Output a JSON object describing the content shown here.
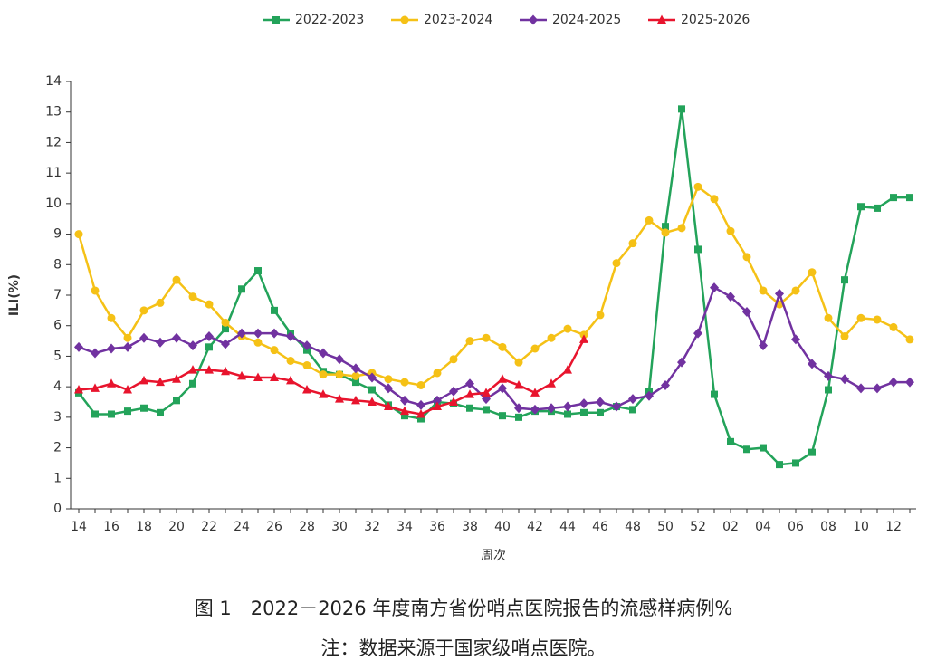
{
  "chart_data": {
    "type": "line",
    "x_label": "周次",
    "y_label": "ILI(%)",
    "categories": [
      "14",
      null,
      "16",
      null,
      "18",
      null,
      "20",
      null,
      "22",
      null,
      "24",
      null,
      "26",
      null,
      "28",
      null,
      "30",
      null,
      "32",
      null,
      "34",
      null,
      "36",
      null,
      "38",
      null,
      "40",
      null,
      "42",
      null,
      "44",
      null,
      "46",
      null,
      "48",
      null,
      "50",
      null,
      "52",
      null,
      "02",
      null,
      "04",
      null,
      "06",
      null,
      "08",
      null,
      "10",
      null,
      "12",
      null
    ],
    "ylim": [
      0,
      14
    ],
    "yticks": [
      0,
      1,
      2,
      3,
      4,
      5,
      6,
      7,
      8,
      9,
      10,
      11,
      12,
      13,
      14
    ],
    "series": [
      {
        "name": "2022-2023",
        "color": "#23a35a",
        "marker": "square",
        "values": [
          3.8,
          3.1,
          3.1,
          3.2,
          3.3,
          3.15,
          3.55,
          4.1,
          5.3,
          5.9,
          7.2,
          7.8,
          6.5,
          5.75,
          5.2,
          4.5,
          4.4,
          4.15,
          3.9,
          3.4,
          3.05,
          2.95,
          3.5,
          3.45,
          3.3,
          3.25,
          3.05,
          3.0,
          3.2,
          3.2,
          3.1,
          3.15,
          3.15,
          3.35,
          3.25,
          3.85,
          9.25,
          13.1,
          8.5,
          3.75,
          2.2,
          1.95,
          2.0,
          1.45,
          1.5,
          1.85,
          3.9,
          7.5,
          9.9,
          9.85,
          10.2,
          10.2
        ]
      },
      {
        "name": "2023-2024",
        "color": "#f5c116",
        "marker": "circle",
        "values": [
          9.0,
          7.15,
          6.25,
          5.6,
          6.5,
          6.75,
          7.5,
          6.95,
          6.7,
          6.1,
          5.65,
          5.45,
          5.2,
          4.85,
          4.7,
          4.4,
          4.4,
          4.35,
          4.45,
          4.25,
          4.15,
          4.05,
          4.45,
          4.9,
          5.5,
          5.6,
          5.3,
          4.8,
          5.25,
          5.6,
          5.9,
          5.7,
          6.35,
          8.05,
          8.7,
          9.45,
          9.05,
          9.2,
          10.55,
          10.15,
          9.1,
          8.25,
          7.15,
          6.7,
          7.15,
          7.75,
          6.25,
          5.65,
          6.25,
          6.2,
          5.95,
          5.55
        ]
      },
      {
        "name": "2024-2025",
        "color": "#7132a0",
        "marker": "diamond",
        "values": [
          5.3,
          5.1,
          5.25,
          5.3,
          5.6,
          5.45,
          5.6,
          5.35,
          5.65,
          5.4,
          5.75,
          5.75,
          5.75,
          5.65,
          5.35,
          5.1,
          4.9,
          4.6,
          4.3,
          3.95,
          3.55,
          3.4,
          3.55,
          3.85,
          4.1,
          3.6,
          3.95,
          3.3,
          3.25,
          3.3,
          3.35,
          3.45,
          3.5,
          3.35,
          3.6,
          3.7,
          4.05,
          4.8,
          5.75,
          7.25,
          6.95,
          6.45,
          5.35,
          7.05,
          5.55,
          4.75,
          4.35,
          4.25,
          3.95,
          3.95,
          4.15,
          4.15
        ]
      },
      {
        "name": "2025-2026",
        "color": "#e8142d",
        "marker": "triangle",
        "values": [
          3.9,
          3.95,
          4.1,
          3.9,
          4.2,
          4.15,
          4.25,
          4.55,
          4.55,
          4.5,
          4.35,
          4.3,
          4.3,
          4.2,
          3.9,
          3.75,
          3.6,
          3.55,
          3.5,
          3.35,
          3.2,
          3.1,
          3.35,
          3.5,
          3.75,
          3.8,
          4.25,
          4.05,
          3.8,
          4.1,
          4.55,
          5.55,
          null,
          null,
          null,
          null,
          null,
          null,
          null,
          null,
          null,
          null,
          null,
          null,
          null,
          null,
          null,
          null,
          null,
          null,
          null,
          null
        ]
      }
    ]
  },
  "caption": {
    "title": "图 1　2022－2026 年度南方省份哨点医院报告的流感样病例%",
    "note": "注：数据来源于国家级哨点医院。"
  }
}
